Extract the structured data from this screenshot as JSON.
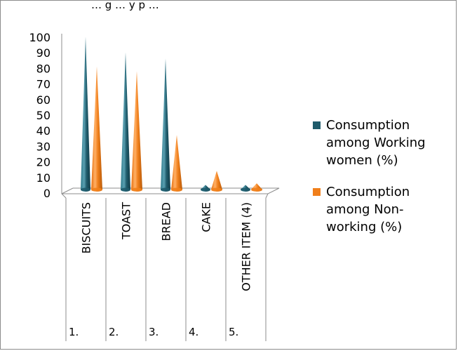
{
  "chart_data": {
    "type": "bar",
    "bar_shape": "cone-3d",
    "title": "… g … y p …",
    "categories": [
      "BISCUITS",
      "TOAST",
      "BREAD",
      "CAKE",
      "OTHER ITEM (4)"
    ],
    "category_numbers": [
      "1.",
      "2.",
      "3.",
      "4.",
      "5."
    ],
    "series": [
      {
        "name_lines": [
          "Consumption",
          "among Working",
          "women (%)"
        ],
        "color": "#1f5b6b",
        "values": [
          98,
          88,
          84,
          3,
          3
        ]
      },
      {
        "name_lines": [
          "Consumption",
          "among Non-",
          "working (%)"
        ],
        "color": "#f07f1b",
        "values": [
          79,
          76,
          35,
          12,
          4
        ]
      }
    ],
    "ylim": [
      0,
      100
    ],
    "yticks": [
      "0",
      "10",
      "20",
      "30",
      "40",
      "50",
      "60",
      "70",
      "80",
      "90",
      "100"
    ],
    "grid": false,
    "legend_position": "right"
  }
}
